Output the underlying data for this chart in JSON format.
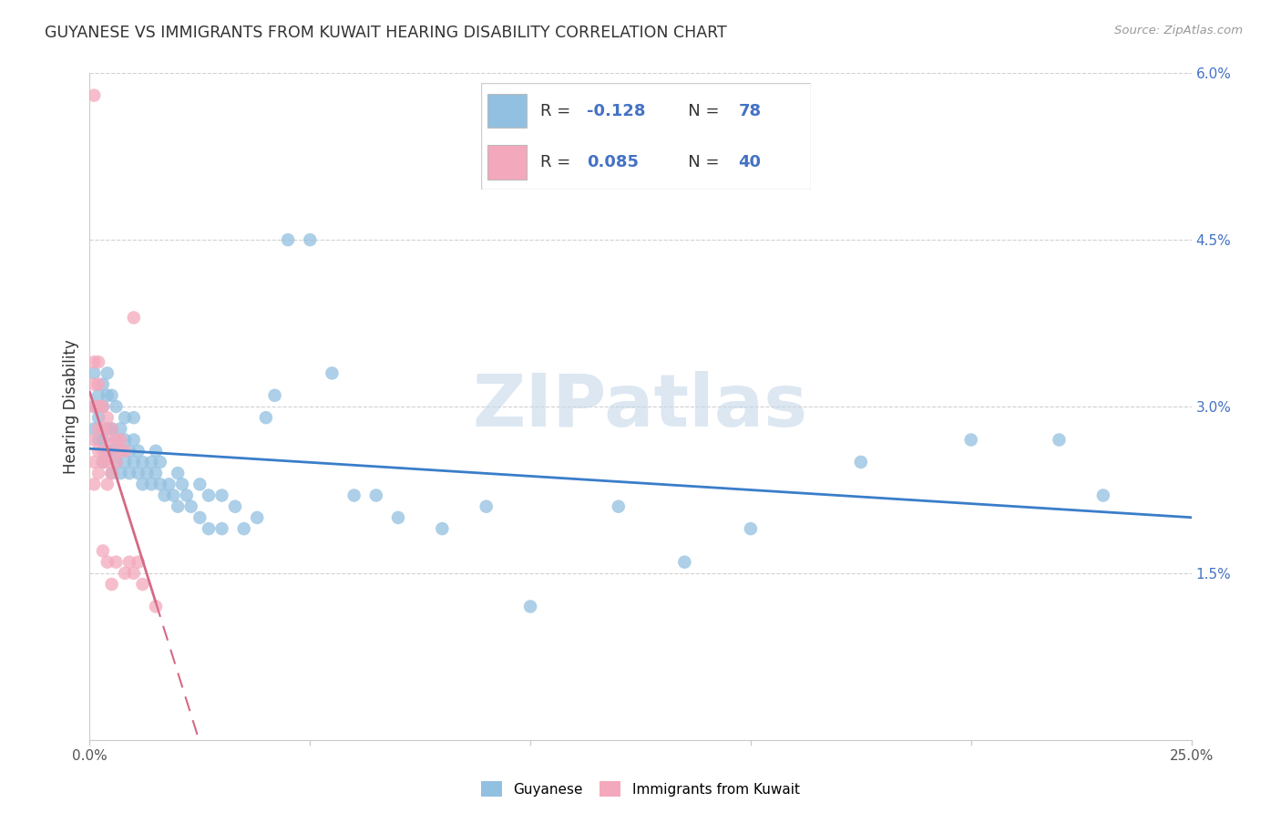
{
  "title": "GUYANESE VS IMMIGRANTS FROM KUWAIT HEARING DISABILITY CORRELATION CHART",
  "source": "Source: ZipAtlas.com",
  "ylabel": "Hearing Disability",
  "xlim": [
    0,
    0.25
  ],
  "ylim": [
    0,
    0.06
  ],
  "xticks": [
    0.0,
    0.05,
    0.1,
    0.15,
    0.2,
    0.25
  ],
  "xtick_labels_show": [
    "0.0%",
    "",
    "",
    "",
    "",
    "25.0%"
  ],
  "yticks": [
    0.0,
    0.015,
    0.03,
    0.045,
    0.06
  ],
  "ytick_labels": [
    "",
    "1.5%",
    "3.0%",
    "4.5%",
    "6.0%"
  ],
  "blue_color": "#92c0e0",
  "pink_color": "#f4a8bc",
  "blue_line_color": "#3a7dc9",
  "pink_line_color": "#d46a85",
  "grid_color": "#cccccc",
  "watermark_color": "#c5d8ea",
  "legend_r_blue": "-0.128",
  "legend_n_blue": "78",
  "legend_r_pink": "0.085",
  "legend_n_pink": "40",
  "blue_x": [
    0.001,
    0.001,
    0.001,
    0.002,
    0.002,
    0.002,
    0.003,
    0.003,
    0.003,
    0.003,
    0.004,
    0.004,
    0.004,
    0.004,
    0.005,
    0.005,
    0.005,
    0.005,
    0.006,
    0.006,
    0.006,
    0.007,
    0.007,
    0.007,
    0.008,
    0.008,
    0.008,
    0.009,
    0.009,
    0.01,
    0.01,
    0.01,
    0.011,
    0.011,
    0.012,
    0.012,
    0.013,
    0.014,
    0.014,
    0.015,
    0.015,
    0.016,
    0.016,
    0.017,
    0.018,
    0.019,
    0.02,
    0.02,
    0.021,
    0.022,
    0.023,
    0.025,
    0.025,
    0.027,
    0.027,
    0.03,
    0.03,
    0.033,
    0.035,
    0.038,
    0.04,
    0.042,
    0.045,
    0.05,
    0.055,
    0.06,
    0.065,
    0.07,
    0.08,
    0.09,
    0.1,
    0.12,
    0.135,
    0.15,
    0.175,
    0.2,
    0.22,
    0.23
  ],
  "blue_y": [
    0.028,
    0.03,
    0.033,
    0.027,
    0.029,
    0.031,
    0.025,
    0.027,
    0.03,
    0.032,
    0.026,
    0.028,
    0.031,
    0.033,
    0.024,
    0.026,
    0.028,
    0.031,
    0.025,
    0.027,
    0.03,
    0.024,
    0.026,
    0.028,
    0.025,
    0.027,
    0.029,
    0.024,
    0.026,
    0.025,
    0.027,
    0.029,
    0.024,
    0.026,
    0.023,
    0.025,
    0.024,
    0.023,
    0.025,
    0.024,
    0.026,
    0.023,
    0.025,
    0.022,
    0.023,
    0.022,
    0.024,
    0.021,
    0.023,
    0.022,
    0.021,
    0.023,
    0.02,
    0.022,
    0.019,
    0.022,
    0.019,
    0.021,
    0.019,
    0.02,
    0.029,
    0.031,
    0.045,
    0.045,
    0.033,
    0.022,
    0.022,
    0.02,
    0.019,
    0.021,
    0.012,
    0.021,
    0.016,
    0.019,
    0.025,
    0.027,
    0.027,
    0.022
  ],
  "pink_x": [
    0.001,
    0.001,
    0.001,
    0.001,
    0.001,
    0.001,
    0.001,
    0.002,
    0.002,
    0.002,
    0.002,
    0.002,
    0.002,
    0.003,
    0.003,
    0.003,
    0.003,
    0.003,
    0.004,
    0.004,
    0.004,
    0.004,
    0.004,
    0.005,
    0.005,
    0.005,
    0.005,
    0.006,
    0.006,
    0.006,
    0.007,
    0.007,
    0.008,
    0.008,
    0.009,
    0.01,
    0.01,
    0.011,
    0.012,
    0.015
  ],
  "pink_y": [
    0.058,
    0.034,
    0.03,
    0.027,
    0.025,
    0.023,
    0.032,
    0.03,
    0.028,
    0.026,
    0.024,
    0.032,
    0.034,
    0.028,
    0.03,
    0.025,
    0.026,
    0.017,
    0.029,
    0.027,
    0.025,
    0.023,
    0.016,
    0.028,
    0.026,
    0.024,
    0.014,
    0.027,
    0.025,
    0.016,
    0.027,
    0.026,
    0.026,
    0.015,
    0.016,
    0.038,
    0.015,
    0.016,
    0.014,
    0.012
  ]
}
